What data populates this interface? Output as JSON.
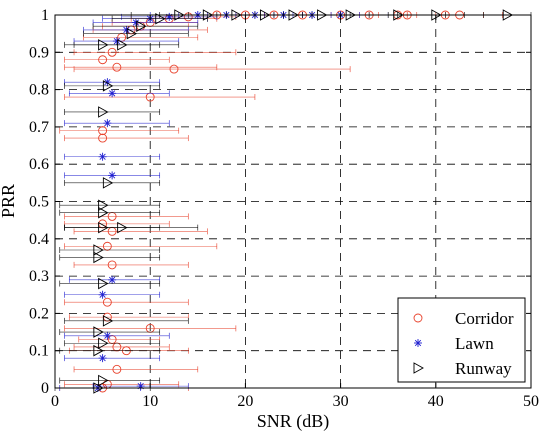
{
  "chart_data": {
    "type": "scatter",
    "xlabel": "SNR (dB)",
    "ylabel": "PRR",
    "xlim": [
      0,
      50
    ],
    "ylim": [
      0,
      1
    ],
    "x_ticks": [
      "0",
      "10",
      "20",
      "30",
      "40",
      "50"
    ],
    "y_ticks": [
      "0",
      "0.1",
      "0.2",
      "0.3",
      "0.4",
      "0.5",
      "0.6",
      "0.7",
      "0.8",
      "0.9",
      "1"
    ],
    "grid": "dashed",
    "legend_position": "bottom-right",
    "colors": {
      "Corridor": "#e8402a",
      "Lawn": "#1f1fd0",
      "Runway": "#000000"
    },
    "series": [
      {
        "name": "Corridor",
        "marker": "circle",
        "points": [
          {
            "x": 5.0,
            "y": 0.0,
            "xmin": 0.5,
            "xmax": 14
          },
          {
            "x": 5.5,
            "y": 0.01,
            "xmin": 1,
            "xmax": 13
          },
          {
            "x": 6.5,
            "y": 0.05,
            "xmin": 2,
            "xmax": 15
          },
          {
            "x": 7.5,
            "y": 0.1,
            "xmin": 1.5,
            "xmax": 14
          },
          {
            "x": 6.5,
            "y": 0.11,
            "xmin": 2,
            "xmax": 12
          },
          {
            "x": 10.0,
            "y": 0.16,
            "xmin": 1,
            "xmax": 19
          },
          {
            "x": 6.0,
            "y": 0.13,
            "xmin": 2.5,
            "xmax": 11
          },
          {
            "x": 5.5,
            "y": 0.19,
            "xmin": 1.5,
            "xmax": 14
          },
          {
            "x": 5.5,
            "y": 0.23,
            "xmin": 1,
            "xmax": 14
          },
          {
            "x": 6.0,
            "y": 0.33,
            "xmin": 2,
            "xmax": 14
          },
          {
            "x": 5.5,
            "y": 0.38,
            "xmin": 1,
            "xmax": 17
          },
          {
            "x": 6.0,
            "y": 0.42,
            "xmin": 2,
            "xmax": 16
          },
          {
            "x": 5.0,
            "y": 0.44,
            "xmin": 1,
            "xmax": 12
          },
          {
            "x": 6.0,
            "y": 0.46,
            "xmin": 1,
            "xmax": 14
          },
          {
            "x": 5.0,
            "y": 0.67,
            "xmin": 1,
            "xmax": 14
          },
          {
            "x": 5.0,
            "y": 0.69,
            "xmin": 0.5,
            "xmax": 13
          },
          {
            "x": 10.0,
            "y": 0.78,
            "xmin": 1,
            "xmax": 21
          },
          {
            "x": 6.5,
            "y": 0.86,
            "xmin": 1,
            "xmax": 17
          },
          {
            "x": 12.5,
            "y": 0.855,
            "xmin": 2,
            "xmax": 31
          },
          {
            "x": 5.0,
            "y": 0.88,
            "xmin": 1,
            "xmax": 12
          },
          {
            "x": 6.0,
            "y": 0.9,
            "xmin": 2,
            "xmax": 19
          },
          {
            "x": 7.0,
            "y": 0.94,
            "xmin": 3,
            "xmax": 15
          },
          {
            "x": 8.0,
            "y": 0.96,
            "xmin": 4,
            "xmax": 16
          },
          {
            "x": 9.0,
            "y": 0.97,
            "xmin": 5,
            "xmax": 14
          },
          {
            "x": 10.0,
            "y": 0.98,
            "xmin": 6,
            "xmax": 15
          },
          {
            "x": 12.0,
            "y": 0.99,
            "xmin": 8,
            "xmax": 17
          },
          {
            "x": 14.0,
            "y": 0.995,
            "xmin": 10,
            "xmax": 19
          },
          {
            "x": 17.0,
            "y": 1.0,
            "xmin": 13,
            "xmax": 22
          },
          {
            "x": 20.0,
            "y": 1.0,
            "xmin": 16,
            "xmax": 24
          },
          {
            "x": 23.0,
            "y": 1.0,
            "xmin": 19,
            "xmax": 27
          },
          {
            "x": 26.0,
            "y": 1.0,
            "xmin": 22,
            "xmax": 30
          },
          {
            "x": 30.0,
            "y": 1.0,
            "xmin": 26,
            "xmax": 34
          },
          {
            "x": 33.0,
            "y": 1.0,
            "xmin": 29,
            "xmax": 37
          },
          {
            "x": 36.0,
            "y": 1.0,
            "xmin": 32,
            "xmax": 40
          },
          {
            "x": 37.0,
            "y": 1.0,
            "xmin": 33,
            "xmax": 41
          },
          {
            "x": 41.0,
            "y": 1.0,
            "xmin": 37,
            "xmax": 45
          },
          {
            "x": 42.5,
            "y": 1.0,
            "xmin": 38,
            "xmax": 47
          }
        ]
      },
      {
        "name": "Lawn",
        "marker": "star",
        "points": [
          {
            "x": 4.5,
            "y": 0.0,
            "xmin": 0.5,
            "xmax": 9
          },
          {
            "x": 9.0,
            "y": 0.005,
            "xmin": 4,
            "xmax": 14
          },
          {
            "x": 5.0,
            "y": 0.08,
            "xmin": 1,
            "xmax": 11
          },
          {
            "x": 5.5,
            "y": 0.14,
            "xmin": 1,
            "xmax": 12
          },
          {
            "x": 5.0,
            "y": 0.25,
            "xmin": 1,
            "xmax": 11
          },
          {
            "x": 6.0,
            "y": 0.29,
            "xmin": 1.5,
            "xmax": 11
          },
          {
            "x": 5.0,
            "y": 0.62,
            "xmin": 1,
            "xmax": 11
          },
          {
            "x": 6.0,
            "y": 0.57,
            "xmin": 1,
            "xmax": 11
          },
          {
            "x": 5.5,
            "y": 0.71,
            "xmin": 1,
            "xmax": 12
          },
          {
            "x": 6.0,
            "y": 0.79,
            "xmin": 1.5,
            "xmax": 12
          },
          {
            "x": 5.5,
            "y": 0.82,
            "xmin": 1,
            "xmax": 11
          },
          {
            "x": 6.5,
            "y": 0.93,
            "xmin": 2,
            "xmax": 13
          },
          {
            "x": 7.5,
            "y": 0.96,
            "xmin": 3,
            "xmax": 14
          },
          {
            "x": 8.5,
            "y": 0.98,
            "xmin": 4,
            "xmax": 15
          },
          {
            "x": 10.0,
            "y": 0.99,
            "xmin": 5,
            "xmax": 16
          },
          {
            "x": 12.0,
            "y": 0.995,
            "xmin": 7,
            "xmax": 17
          },
          {
            "x": 15.0,
            "y": 1.0,
            "xmin": 10,
            "xmax": 20
          },
          {
            "x": 18.0,
            "y": 1.0,
            "xmin": 13,
            "xmax": 23
          },
          {
            "x": 21.0,
            "y": 1.0,
            "xmin": 16,
            "xmax": 26
          },
          {
            "x": 24.0,
            "y": 1.0,
            "xmin": 19,
            "xmax": 29
          },
          {
            "x": 27.0,
            "y": 1.0,
            "xmin": 22,
            "xmax": 32
          },
          {
            "x": 30.0,
            "y": 1.0,
            "xmin": 25,
            "xmax": 35
          }
        ]
      },
      {
        "name": "Runway",
        "marker": "triangle-right",
        "points": [
          {
            "x": 4.5,
            "y": 0.0,
            "xmin": 0,
            "xmax": 10
          },
          {
            "x": 5.0,
            "y": 0.02,
            "xmin": 0.5,
            "xmax": 11
          },
          {
            "x": 4.5,
            "y": 0.1,
            "xmin": 0.5,
            "xmax": 11
          },
          {
            "x": 5.0,
            "y": 0.12,
            "xmin": 1,
            "xmax": 11
          },
          {
            "x": 4.5,
            "y": 0.15,
            "xmin": 0.5,
            "xmax": 11
          },
          {
            "x": 5.5,
            "y": 0.18,
            "xmin": 1,
            "xmax": 14
          },
          {
            "x": 5.0,
            "y": 0.28,
            "xmin": 0.5,
            "xmax": 11
          },
          {
            "x": 4.5,
            "y": 0.35,
            "xmin": 0.5,
            "xmax": 11
          },
          {
            "x": 4.5,
            "y": 0.37,
            "xmin": 0.5,
            "xmax": 11
          },
          {
            "x": 5.0,
            "y": 0.43,
            "xmin": 1,
            "xmax": 11
          },
          {
            "x": 7.0,
            "y": 0.43,
            "xmin": 1,
            "xmax": 15
          },
          {
            "x": 5.0,
            "y": 0.47,
            "xmin": 0.5,
            "xmax": 11
          },
          {
            "x": 5.0,
            "y": 0.49,
            "xmin": 0.5,
            "xmax": 11
          },
          {
            "x": 5.5,
            "y": 0.55,
            "xmin": 1,
            "xmax": 11
          },
          {
            "x": 5.0,
            "y": 0.74,
            "xmin": 1,
            "xmax": 11
          },
          {
            "x": 5.5,
            "y": 0.81,
            "xmin": 1,
            "xmax": 11
          },
          {
            "x": 5.0,
            "y": 0.92,
            "xmin": 1,
            "xmax": 11
          },
          {
            "x": 7.0,
            "y": 0.92,
            "xmin": 2,
            "xmax": 13
          },
          {
            "x": 8.0,
            "y": 0.95,
            "xmin": 3,
            "xmax": 14
          },
          {
            "x": 9.0,
            "y": 0.97,
            "xmin": 4,
            "xmax": 15
          },
          {
            "x": 11.0,
            "y": 0.99,
            "xmin": 6,
            "xmax": 16
          },
          {
            "x": 13.0,
            "y": 1.0,
            "xmin": 8,
            "xmax": 18
          },
          {
            "x": 16.0,
            "y": 1.0,
            "xmin": 11,
            "xmax": 21
          },
          {
            "x": 19.0,
            "y": 1.0,
            "xmin": 14,
            "xmax": 24
          },
          {
            "x": 22.0,
            "y": 1.0,
            "xmin": 17,
            "xmax": 27
          },
          {
            "x": 25.0,
            "y": 1.0,
            "xmin": 20,
            "xmax": 30
          },
          {
            "x": 28.0,
            "y": 1.0,
            "xmin": 23,
            "xmax": 33
          },
          {
            "x": 31.0,
            "y": 1.0,
            "xmin": 26,
            "xmax": 36
          },
          {
            "x": 36.0,
            "y": 1.0,
            "xmin": 31,
            "xmax": 41
          },
          {
            "x": 40.0,
            "y": 1.0,
            "xmin": 35,
            "xmax": 45
          },
          {
            "x": 47.5,
            "y": 1.0,
            "xmin": 43,
            "xmax": 50
          }
        ]
      }
    ]
  }
}
